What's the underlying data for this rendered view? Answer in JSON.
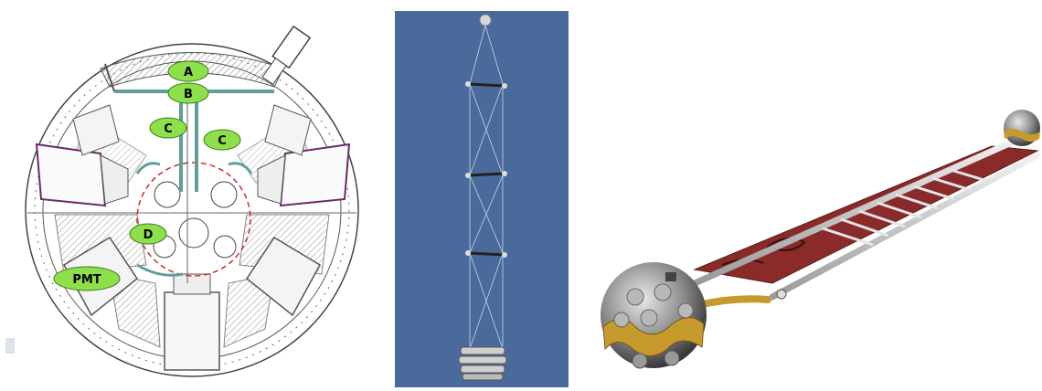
{
  "colors": {
    "label_fill": "#8ee04a",
    "label_stroke": "#3f7a1c",
    "pipe": "#5f9e9a",
    "dashed_circle": "#cc2b2b",
    "housing_purple": "#6a2a6a",
    "blue_background": "#4a6a9b",
    "platform_red": "#8a2a2a",
    "gold": "#c79a2e"
  },
  "left_diagram": {
    "labels": {
      "a": "A",
      "b": "B",
      "c_left": "C",
      "c_right": "C",
      "d": "D",
      "pmt": "PMT"
    }
  }
}
